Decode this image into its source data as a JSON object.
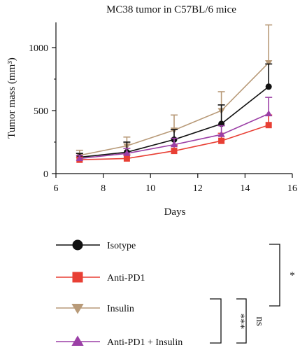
{
  "chart_data": {
    "type": "line",
    "title": "MC38 tumor in C57BL/6 mice",
    "xlabel": "Days",
    "ylabel": "Tumor mass (mm³)",
    "xlim": [
      6,
      16
    ],
    "ylim": [
      0,
      1200
    ],
    "xticks": [
      6,
      8,
      10,
      12,
      14,
      16
    ],
    "yticks": [
      0,
      500,
      1000
    ],
    "grid": false,
    "legend_position": "below plot",
    "series": [
      {
        "name": "Isotype",
        "marker": "circle",
        "color": "#111111",
        "x": [
          7,
          9,
          11,
          13,
          15
        ],
        "y": [
          130,
          170,
          270,
          395,
          690
        ],
        "error": [
          30,
          80,
          80,
          150,
          180
        ]
      },
      {
        "name": "Anti-PD1",
        "marker": "square",
        "color": "#e83f34",
        "x": [
          7,
          9,
          11,
          13,
          15
        ],
        "y": [
          110,
          120,
          180,
          260,
          385
        ],
        "error": [
          20,
          30,
          45,
          60,
          80
        ]
      },
      {
        "name": "Insulin",
        "marker": "triangle-down",
        "color": "#b89a78",
        "x": [
          7,
          9,
          11,
          13,
          15
        ],
        "y": [
          145,
          220,
          345,
          500,
          880
        ],
        "error": [
          40,
          70,
          120,
          150,
          300
        ]
      },
      {
        "name": "Anti-PD1 + Insulin",
        "marker": "triangle-up",
        "color": "#9b3fa6",
        "x": [
          7,
          9,
          11,
          13,
          15
        ],
        "y": [
          120,
          160,
          230,
          310,
          475
        ],
        "error": [
          25,
          40,
          50,
          70,
          130
        ]
      }
    ],
    "significance": [
      {
        "label": "*"
      },
      {
        "label": "***"
      },
      {
        "label": "ns"
      }
    ]
  }
}
